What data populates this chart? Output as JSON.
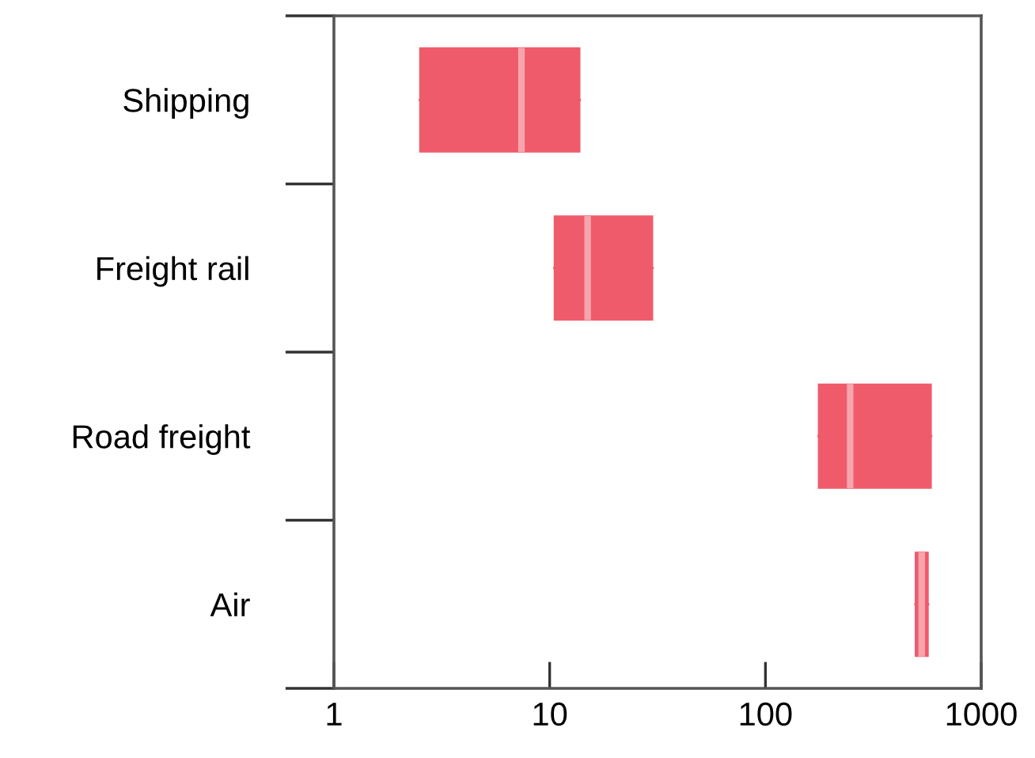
{
  "chart_data": {
    "type": "box",
    "orientation": "horizontal",
    "log": "x",
    "categories": [
      "Shipping",
      "Freight rail",
      "Road freight",
      "Air"
    ],
    "boxes": [
      {
        "low": 2.5,
        "q1": 2.5,
        "median": 7.4,
        "q3": 13.8,
        "high": 13.8
      },
      {
        "low": 10.5,
        "q1": 10.5,
        "median": 15,
        "q3": 30,
        "high": 30
      },
      {
        "low": 176,
        "q1": 176,
        "median": 247,
        "q3": 587,
        "high": 587
      },
      {
        "low": 495,
        "q1": 495,
        "median": 530,
        "q3": 568,
        "high": 568
      }
    ],
    "color": "#ef5b6a",
    "xlim": [
      1,
      1000
    ],
    "xticks": [
      1,
      10,
      100,
      1000
    ],
    "grid": false,
    "legend": false
  }
}
